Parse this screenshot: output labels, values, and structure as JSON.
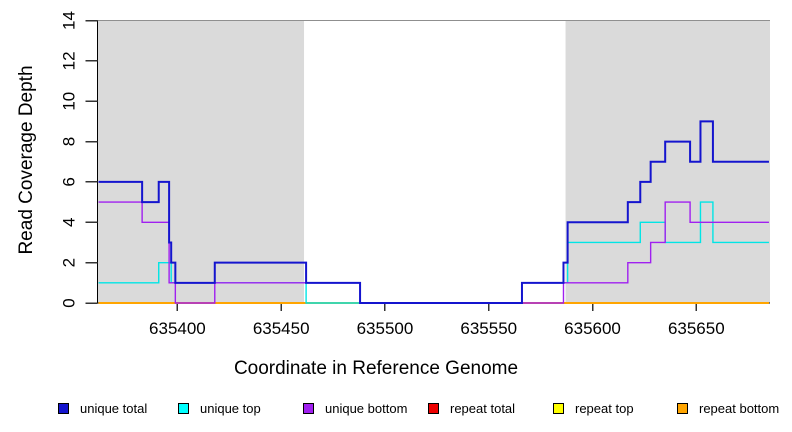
{
  "figure": {
    "background": "#FFFFFF",
    "shaded_band_color": "#DADADA",
    "frame_color": "#8F8F8F"
  },
  "chart_data": {
    "type": "line",
    "step": true,
    "title": "",
    "xlabel": "Coordinate in Reference Genome",
    "ylabel": "Read Coverage Depth",
    "xlim": [
      635361.5,
      635685.5
    ],
    "ylim": [
      0,
      14
    ],
    "x_ticks": [
      635400,
      635450,
      635500,
      635550,
      635600,
      635650
    ],
    "y_ticks": [
      0,
      2,
      4,
      6,
      8,
      10,
      12,
      14
    ],
    "grid": false,
    "legend_position": "bottom",
    "shaded_regions": [
      {
        "x0": 635361.5,
        "x1": 635461,
        "label": "left-shaded-region"
      },
      {
        "x0": 635587,
        "x1": 635685.5,
        "label": "right-shaded-region"
      }
    ],
    "x_data_range": [
      635362,
      635685
    ],
    "series": [
      {
        "name": "repeat total",
        "color": "#EE0000",
        "width": 1.4,
        "steps": [
          [
            635362,
            0
          ],
          [
            635685,
            0
          ]
        ]
      },
      {
        "name": "repeat top",
        "color": "#FFFF00",
        "width": 1.4,
        "steps": [
          [
            635362,
            0
          ],
          [
            635685,
            0
          ]
        ]
      },
      {
        "name": "repeat bottom",
        "color": "#FFA500",
        "width": 2,
        "steps": [
          [
            635362,
            0
          ],
          [
            635685,
            0
          ]
        ]
      },
      {
        "name": "unique top",
        "color": "#00E5E5",
        "width": 1.4,
        "steps": [
          [
            635362,
            1
          ],
          [
            635391,
            2
          ],
          [
            635397,
            1
          ],
          [
            635462,
            0
          ],
          [
            635566,
            1
          ],
          [
            635588,
            3
          ],
          [
            635623,
            4
          ],
          [
            635635,
            3
          ],
          [
            635652,
            5
          ],
          [
            635658,
            3
          ],
          [
            635685,
            3
          ]
        ]
      },
      {
        "name": "unique bottom",
        "color": "#A020F0",
        "width": 1.4,
        "steps": [
          [
            635362,
            5
          ],
          [
            635383,
            4
          ],
          [
            635396,
            1
          ],
          [
            635399,
            0
          ],
          [
            635418,
            1
          ],
          [
            635488,
            0
          ],
          [
            635586,
            1
          ],
          [
            635617,
            2
          ],
          [
            635628,
            3
          ],
          [
            635635,
            5
          ],
          [
            635647,
            4
          ],
          [
            635685,
            4
          ]
        ]
      },
      {
        "name": "unique total",
        "color": "#1414CE",
        "width": 2,
        "steps": [
          [
            635362,
            6
          ],
          [
            635383,
            5
          ],
          [
            635391,
            6
          ],
          [
            635396,
            3
          ],
          [
            635397,
            2
          ],
          [
            635399,
            1
          ],
          [
            635418,
            2
          ],
          [
            635462,
            1
          ],
          [
            635488,
            0
          ],
          [
            635566,
            1
          ],
          [
            635586,
            2
          ],
          [
            635588,
            4
          ],
          [
            635617,
            5
          ],
          [
            635623,
            6
          ],
          [
            635628,
            7
          ],
          [
            635635,
            8
          ],
          [
            635647,
            7
          ],
          [
            635652,
            9
          ],
          [
            635658,
            7
          ],
          [
            635685,
            7
          ]
        ]
      }
    ],
    "legend": [
      {
        "label": "unique total",
        "color": "#1414CE"
      },
      {
        "label": "unique top",
        "color": "#00FFFF"
      },
      {
        "label": "unique bottom",
        "color": "#A020F0"
      },
      {
        "label": "repeat total",
        "color": "#EE0000"
      },
      {
        "label": "repeat top",
        "color": "#FFFF00"
      },
      {
        "label": "repeat bottom",
        "color": "#FFA500"
      }
    ]
  }
}
